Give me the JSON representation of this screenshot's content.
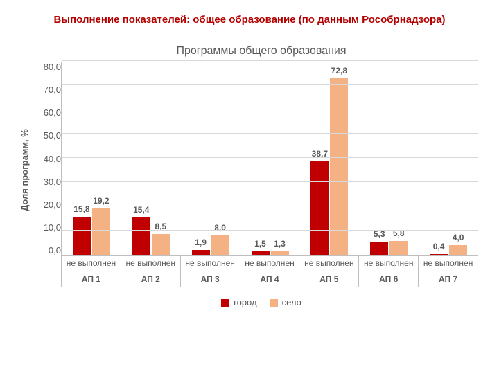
{
  "main_title": "Выполнение показателей: общее образование (по данным Рособрнадзора)",
  "main_title_color": "#b30000",
  "main_title_fontsize": 15,
  "chart": {
    "type": "bar",
    "title": "Программы общего образования",
    "title_fontsize": 16,
    "title_color": "#595959",
    "yaxis_label": "Доля программ, %",
    "yaxis_label_fontsize": 13,
    "ymin": 0,
    "ymax": 80,
    "ytick_step": 10,
    "yticks": [
      "80,0",
      "70,0",
      "60,0",
      "50,0",
      "40,0",
      "30,0",
      "20,0",
      "10,0",
      "0,0"
    ],
    "tick_fontsize": 13,
    "value_label_fontsize": 12,
    "category_label_fontsize": 12,
    "grid_color": "#d9d9d9",
    "axis_color": "#bfbfbf",
    "background_color": "#ffffff",
    "sub_label": "не выполнен",
    "categories": [
      "АП 1",
      "АП 2",
      "АП 3",
      "АП 4",
      "АП 5",
      "АП 6",
      "АП 7"
    ],
    "series": [
      {
        "name": "город",
        "color": "#c00000",
        "values": [
          15.8,
          15.4,
          1.9,
          1.5,
          38.7,
          5.3,
          0.4
        ],
        "labels": [
          "15,8",
          "15,4",
          "1,9",
          "1,5",
          "38,7",
          "5,3",
          "0,4"
        ]
      },
      {
        "name": "село",
        "color": "#f4b183",
        "values": [
          19.2,
          8.5,
          8.0,
          1.3,
          72.8,
          5.8,
          4.0
        ],
        "labels": [
          "19,2",
          "8,5",
          "8,0",
          "1,3",
          "72,8",
          "5,8",
          "4,0"
        ]
      }
    ],
    "legend_fontsize": 13
  }
}
